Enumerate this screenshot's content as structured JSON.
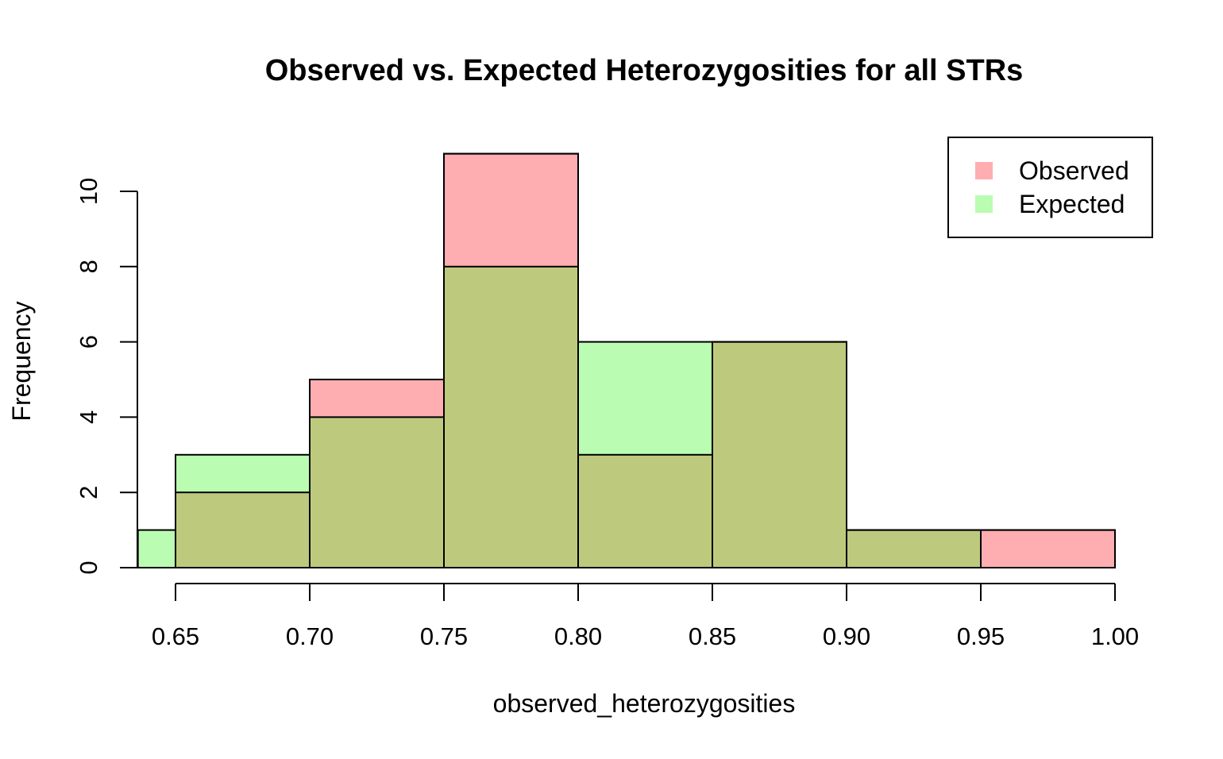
{
  "chart_data": {
    "type": "bar",
    "subtype": "overlaid-histogram",
    "title": "Observed vs. Expected Heterozygosities for all STRs",
    "xlabel": "observed_heterozygosities",
    "ylabel": "Frequency",
    "xlim": [
      0.636,
      1.0
    ],
    "ylim": [
      0,
      11
    ],
    "x_ticks": [
      "0.65",
      "0.70",
      "0.75",
      "0.80",
      "0.85",
      "0.90",
      "0.95",
      "1.00"
    ],
    "y_ticks": [
      "0",
      "2",
      "4",
      "6",
      "8",
      "10"
    ],
    "legend_position": "top-right",
    "grid": false,
    "overlap_color": "#BDCA7E",
    "series": [
      {
        "name": "Observed",
        "color": "#FEADB1",
        "bins": [
          {
            "x0": 0.65,
            "x1": 0.7,
            "count": 2
          },
          {
            "x0": 0.7,
            "x1": 0.75,
            "count": 5
          },
          {
            "x0": 0.75,
            "x1": 0.8,
            "count": 11
          },
          {
            "x0": 0.8,
            "x1": 0.85,
            "count": 3
          },
          {
            "x0": 0.85,
            "x1": 0.9,
            "count": 6
          },
          {
            "x0": 0.9,
            "x1": 0.95,
            "count": 1
          },
          {
            "x0": 0.95,
            "x1": 1.0,
            "count": 1
          }
        ]
      },
      {
        "name": "Expected",
        "color": "#BAFCB1",
        "bins": [
          {
            "x0": 0.636,
            "x1": 0.65,
            "count": 1
          },
          {
            "x0": 0.65,
            "x1": 0.7,
            "count": 3
          },
          {
            "x0": 0.7,
            "x1": 0.75,
            "count": 4
          },
          {
            "x0": 0.75,
            "x1": 0.8,
            "count": 8
          },
          {
            "x0": 0.8,
            "x1": 0.85,
            "count": 6
          },
          {
            "x0": 0.85,
            "x1": 0.9,
            "count": 6
          },
          {
            "x0": 0.9,
            "x1": 0.95,
            "count": 1
          }
        ]
      }
    ]
  }
}
